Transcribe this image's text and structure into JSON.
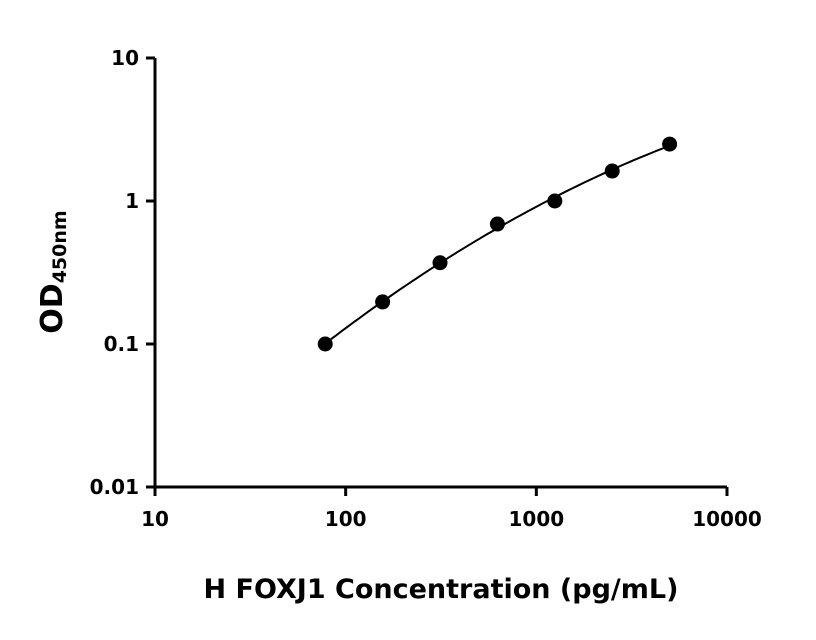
{
  "chart_data": {
    "type": "scatter",
    "title": "",
    "xlabel": "H FOXJ1 Concentration (pg/mL)",
    "ylabel_main": "OD",
    "ylabel_sub": "450nm",
    "xscale": "log",
    "yscale": "log",
    "xlim": [
      10,
      10000
    ],
    "ylim": [
      0.01,
      10
    ],
    "xticks": [
      "10",
      "100",
      "1000",
      "10000"
    ],
    "yticks": [
      "0.01",
      "0.1",
      "1",
      "10"
    ],
    "grid": false,
    "fit_curve": true,
    "marker_color": "#000000",
    "points": [
      {
        "x": 78.125,
        "y": 0.1
      },
      {
        "x": 156.25,
        "y": 0.197
      },
      {
        "x": 312.5,
        "y": 0.37
      },
      {
        "x": 625,
        "y": 0.69
      },
      {
        "x": 1250,
        "y": 1.0
      },
      {
        "x": 2500,
        "y": 1.62
      },
      {
        "x": 5000,
        "y": 2.5
      }
    ]
  }
}
